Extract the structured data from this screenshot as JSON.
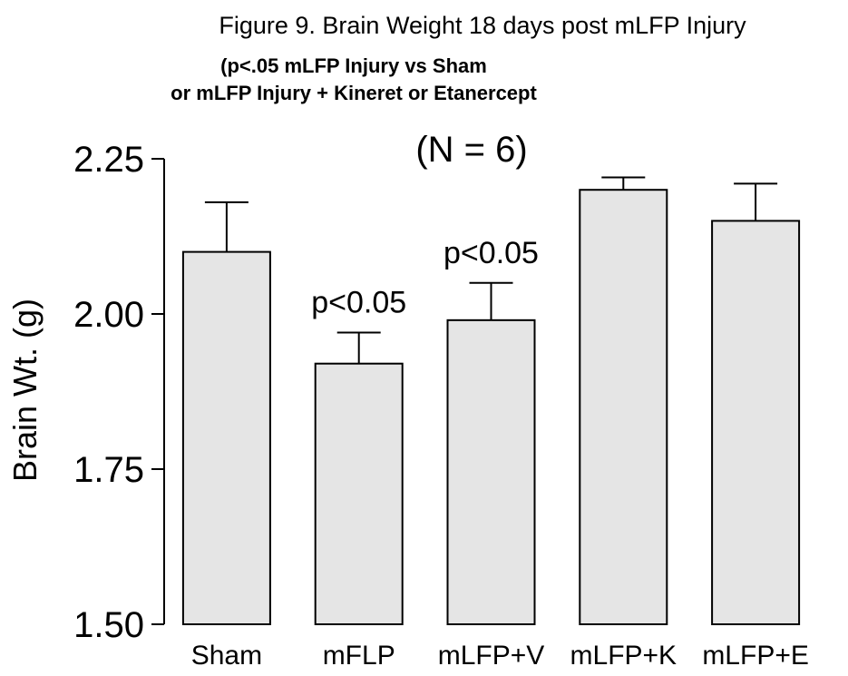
{
  "chart_data": {
    "type": "bar",
    "title": "Figure 9. Brain Weight 18 days post mLFP Injury",
    "subtitle_line1": "(p<.05 mLFP Injury vs Sham",
    "subtitle_line2": "or mLFP Injury + Kineret or Etanercept",
    "annotation": "(N = 6)",
    "ylabel": "Brain Wt. (g)",
    "xlabel": "",
    "ylim": [
      1.5,
      2.25
    ],
    "yticks": [
      1.5,
      1.75,
      2.0,
      2.25
    ],
    "ytick_labels": [
      "1.50",
      "1.75",
      "2.00",
      "2.25"
    ],
    "categories": [
      "Sham",
      "mFLP",
      "mLFP+V",
      "mLFP+K",
      "mLFP+E"
    ],
    "values": [
      2.1,
      1.92,
      1.99,
      2.2,
      2.15
    ],
    "error_upper": [
      0.08,
      0.05,
      0.06,
      0.02,
      0.06
    ],
    "significance_labels": [
      "",
      "p<0.05",
      "p<0.05",
      "",
      ""
    ],
    "bar_color": "#e5e5e5",
    "edge_color": "#000000",
    "grid": false
  }
}
